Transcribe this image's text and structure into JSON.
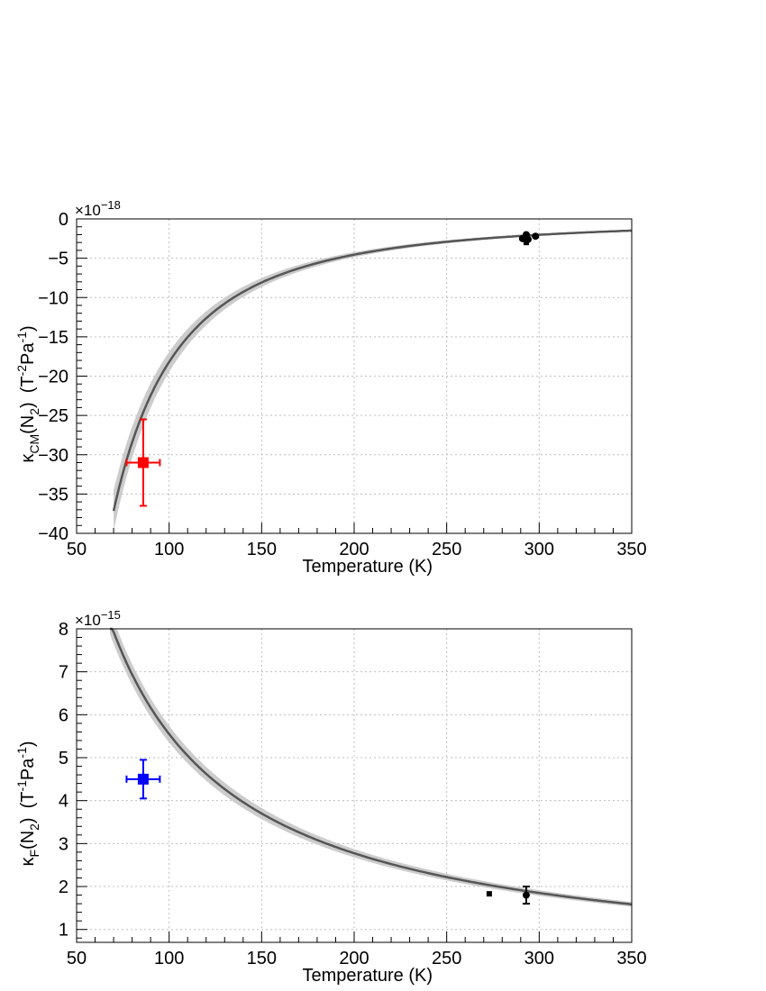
{
  "chart_data": [
    {
      "type": "line",
      "id": "top",
      "xlabel": "Temperature (K)",
      "ylabel": {
        "base": "κ",
        "base_sub": "CM",
        "mid": "(N",
        "mid_sub": "2",
        "mid_close": ")",
        "unit_open": "(T",
        "unit_sup1": "-2",
        "unit_mid": "Pa",
        "unit_sup2": "-1",
        "unit_close": ")"
      },
      "multiplier": {
        "base": "×10",
        "exp": "−18"
      },
      "xlim": [
        50,
        350
      ],
      "ylim": [
        -40,
        0
      ],
      "xticks": [
        50,
        100,
        150,
        200,
        250,
        300,
        350
      ],
      "xtick_labels": [
        "50",
        "100",
        "150",
        "200",
        "250",
        "300",
        "350"
      ],
      "yticks": [
        -40,
        -35,
        -30,
        -25,
        -20,
        -15,
        -10,
        -5,
        0
      ],
      "ytick_labels": [
        "−40",
        "−35",
        "−30",
        "−25",
        "−20",
        "−15",
        "−10",
        "−5",
        "0"
      ],
      "grid": true,
      "curve": {
        "model": "power",
        "coef": -182000,
        "power": -2,
        "x_range": [
          70,
          350
        ],
        "band_rel": 0.07,
        "color": "#555555",
        "band_color": "#cccccc"
      },
      "points": [
        {
          "x": 86,
          "y": -31,
          "xerr": 9,
          "yerr": 5.5,
          "marker": "square",
          "color": "#ff0000"
        },
        {
          "x": 291,
          "y": -2.5,
          "marker": "circle",
          "color": "#000000"
        },
        {
          "x": 293,
          "y": -2.0,
          "marker": "circle",
          "color": "#000000"
        },
        {
          "x": 294,
          "y": -2.6,
          "marker": "circle",
          "color": "#000000"
        },
        {
          "x": 293,
          "y": -3.0,
          "marker": "square",
          "color": "#000000"
        },
        {
          "x": 298,
          "y": -2.2,
          "marker": "circle",
          "color": "#000000"
        }
      ]
    },
    {
      "type": "line",
      "id": "bottom",
      "xlabel": "Temperature (K)",
      "ylabel": {
        "base": "κ",
        "base_sub": "F",
        "mid": "(N",
        "mid_sub": "2",
        "mid_close": ")",
        "unit_open": "(T",
        "unit_sup1": "-1",
        "unit_mid": "Pa",
        "unit_sup2": "-1",
        "unit_close": ")"
      },
      "multiplier": {
        "base": "×10",
        "exp": "−15"
      },
      "xlim": [
        50,
        350
      ],
      "ylim": [
        0.7,
        8
      ],
      "xticks": [
        50,
        100,
        150,
        200,
        250,
        300,
        350
      ],
      "xtick_labels": [
        "50",
        "100",
        "150",
        "200",
        "250",
        "300",
        "350"
      ],
      "yticks": [
        1,
        2,
        3,
        4,
        5,
        6,
        7,
        8
      ],
      "ytick_labels": [
        "1",
        "2",
        "3",
        "4",
        "5",
        "6",
        "7",
        "8"
      ],
      "grid": true,
      "curve": {
        "model": "power",
        "coef": 555,
        "power": -1,
        "x_range": [
          68,
          350
        ],
        "band_rel": 0.035,
        "color": "#555555",
        "band_color": "#cccccc"
      },
      "points": [
        {
          "x": 86,
          "y": 4.5,
          "xerr": 9,
          "yerr": 0.45,
          "marker": "square",
          "color": "#0000ff"
        },
        {
          "x": 273,
          "y": 1.83,
          "marker": "square",
          "color": "#000000"
        },
        {
          "x": 293,
          "y": 1.8,
          "yerr": 0.2,
          "marker": "circle",
          "color": "#000000"
        }
      ]
    }
  ]
}
